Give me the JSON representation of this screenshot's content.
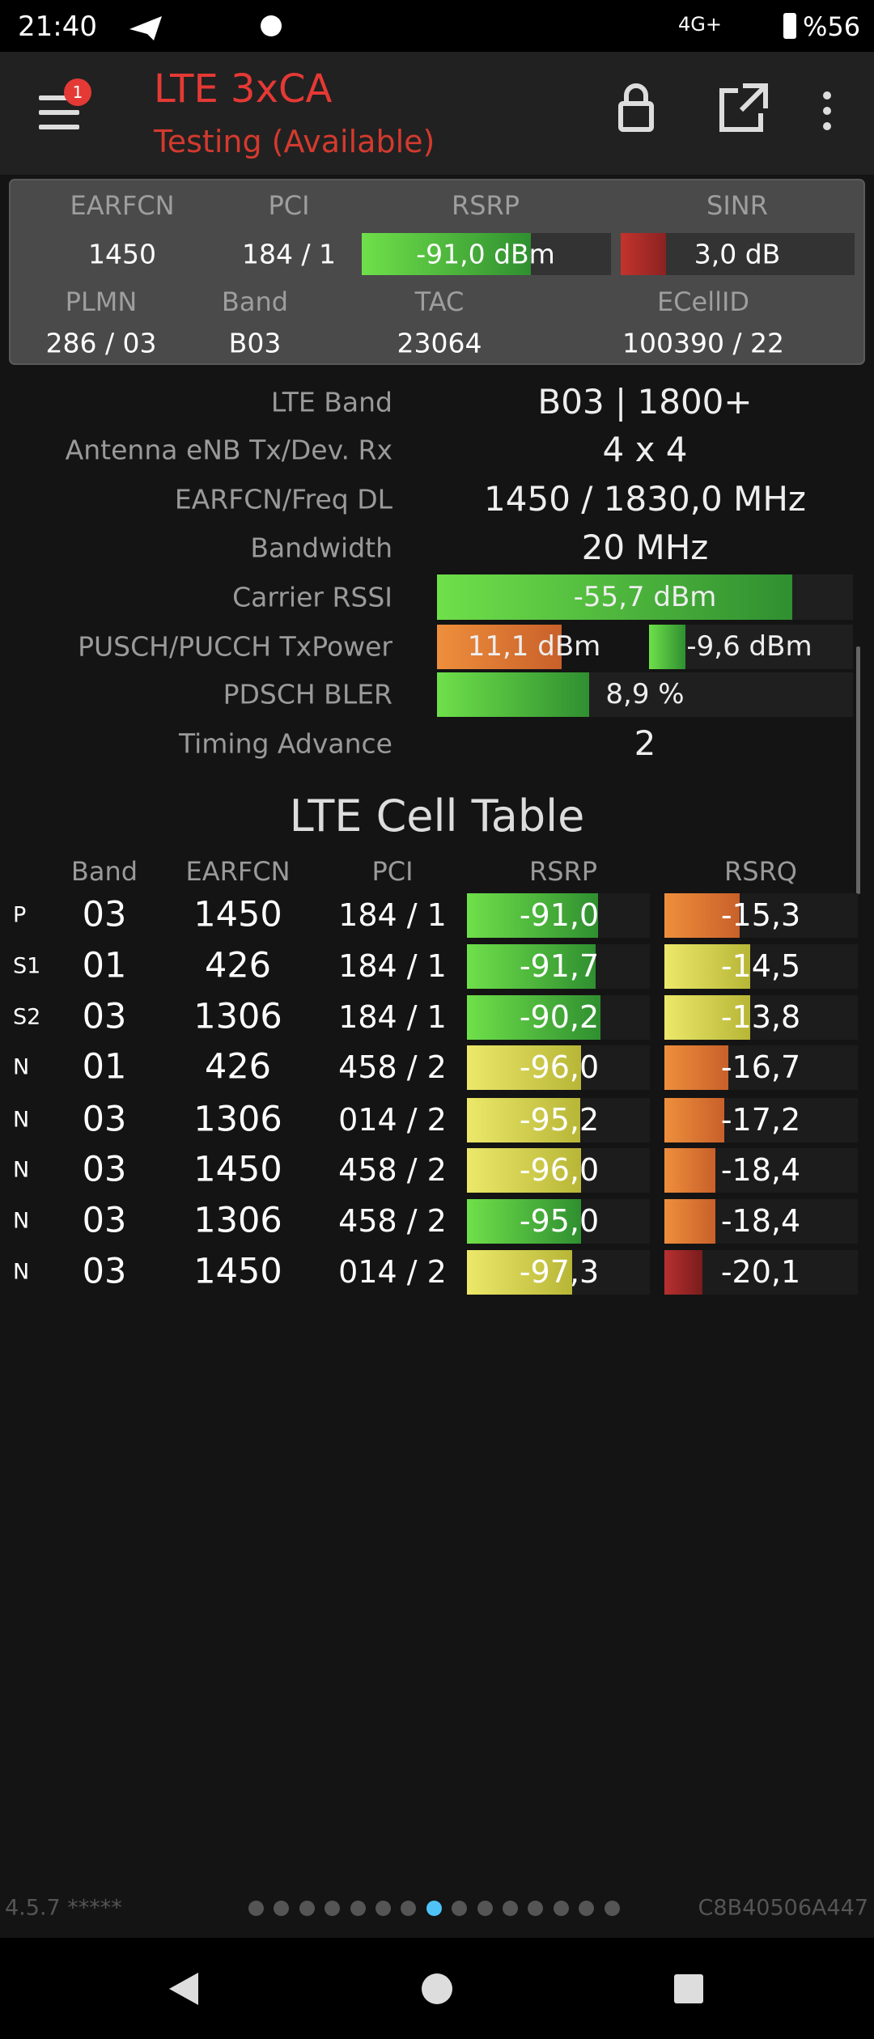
{
  "status_bar": {
    "time": "21:40",
    "network": "4G+",
    "battery": "%56"
  },
  "app_bar": {
    "title": "LTE 3xCA",
    "subtitle": "Testing (Available)",
    "badge": "1"
  },
  "summary": {
    "labels": [
      "EARFCN",
      "PCI",
      "RSRP",
      "SINR",
      "PLMN",
      "Band",
      "TAC",
      "ECellID"
    ],
    "values": [
      "1450",
      "184 / 1",
      "-91,0 dBm",
      "3,0 dB",
      "286 / 03",
      "B03",
      "23064",
      "100390 / 22"
    ]
  },
  "details": [
    {
      "label": "LTE Band",
      "value": "B03 | 1800+"
    },
    {
      "label": "Antenna eNB Tx/Dev. Rx",
      "value": "4 x 4"
    },
    {
      "label": "EARFCN/Freq DL",
      "value": "1450 / 1830,0 MHz"
    },
    {
      "label": "Bandwidth",
      "value": "20 MHz"
    },
    {
      "label": "Carrier RSSI",
      "value": "-55,7 dBm"
    },
    {
      "label": "PUSCH/PUCCH TxPower",
      "value": "11,1 dBm",
      "value2": "-9,6 dBm"
    },
    {
      "label": "PDSCH BLER",
      "value": "8,9 %"
    },
    {
      "label": "Timing Advance",
      "value": "2"
    }
  ],
  "cell_table": {
    "title": "LTE Cell Table",
    "columns": [
      "Band",
      "EARFCN",
      "PCI",
      "RSRP",
      "RSRQ"
    ],
    "rows": [
      [
        "P",
        "03",
        "1450",
        "184 / 1",
        "-91,0",
        "-15,3"
      ],
      [
        "S1",
        "01",
        "426",
        "184 / 1",
        "-91,7",
        "-14,5"
      ],
      [
        "S2",
        "03",
        "1306",
        "184 / 1",
        "-90,2",
        "-13,8"
      ],
      [
        "N",
        "01",
        "426",
        "458 / 2",
        "-96,0",
        "-16,7"
      ],
      [
        "N",
        "03",
        "1306",
        "014 / 2",
        "-95,2",
        "-17,2"
      ],
      [
        "N",
        "03",
        "1450",
        "458 / 2",
        "-96,0",
        "-18,4"
      ],
      [
        "N",
        "03",
        "1306",
        "458 / 2",
        "-95,0",
        "-18,4"
      ],
      [
        "N",
        "03",
        "1450",
        "014 / 2",
        "-97,3",
        "-20,1"
      ]
    ]
  },
  "footer": {
    "version": "4.5.7 *****",
    "device_id": "C8B40506A447"
  }
}
